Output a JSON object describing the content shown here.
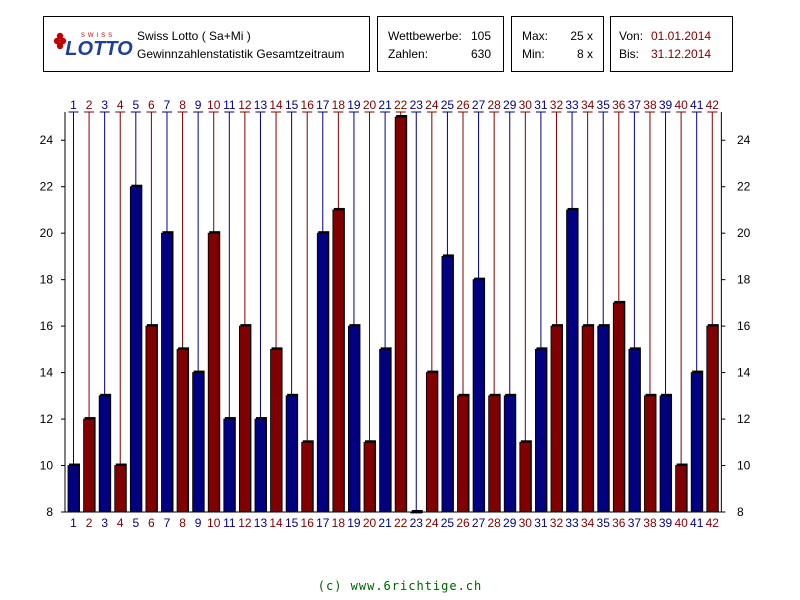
{
  "header": {
    "logo_text": "LOTTO",
    "logo_subtext": "SWISS",
    "title": "Swiss Lotto ( Sa+Mi )",
    "subtitle": "Gewinnzahlenstatistik Gesamtzeitraum",
    "wettbewerbe_label": "Wettbewerbe:",
    "wettbewerbe_value": "105",
    "zahlen_label": "Zahlen:",
    "zahlen_value": "630",
    "max_label": "Max:",
    "max_value": "25 x",
    "min_label": "Min:",
    "min_value": "8 x",
    "von_label": "Von:",
    "von_value": "01.01.2014",
    "bis_label": "Bis:",
    "bis_value": "31.12.2014"
  },
  "colors": {
    "odd": "#000080",
    "even": "#800000",
    "date_text": "#800000"
  },
  "chart_data": {
    "type": "bar",
    "title": "",
    "xlabel": "",
    "ylabel": "",
    "ylim": [
      8,
      25
    ],
    "yticks": [
      8,
      10,
      12,
      14,
      16,
      18,
      20,
      22,
      24
    ],
    "grid": false,
    "categories": [
      "1",
      "2",
      "3",
      "4",
      "5",
      "6",
      "7",
      "8",
      "9",
      "10",
      "11",
      "12",
      "13",
      "14",
      "15",
      "16",
      "17",
      "18",
      "19",
      "20",
      "21",
      "22",
      "23",
      "24",
      "25",
      "26",
      "27",
      "28",
      "29",
      "30",
      "31",
      "32",
      "33",
      "34",
      "35",
      "36",
      "37",
      "38",
      "39",
      "40",
      "41",
      "42"
    ],
    "values": [
      10,
      12,
      13,
      10,
      22,
      16,
      20,
      15,
      14,
      20,
      12,
      16,
      12,
      15,
      13,
      11,
      20,
      21,
      16,
      11,
      15,
      25,
      8,
      14,
      19,
      13,
      18,
      13,
      13,
      11,
      15,
      16,
      21,
      16,
      16,
      17,
      15,
      13,
      13,
      10,
      14,
      16
    ]
  },
  "footer": {
    "text": "(c) www.6richtige.ch"
  }
}
